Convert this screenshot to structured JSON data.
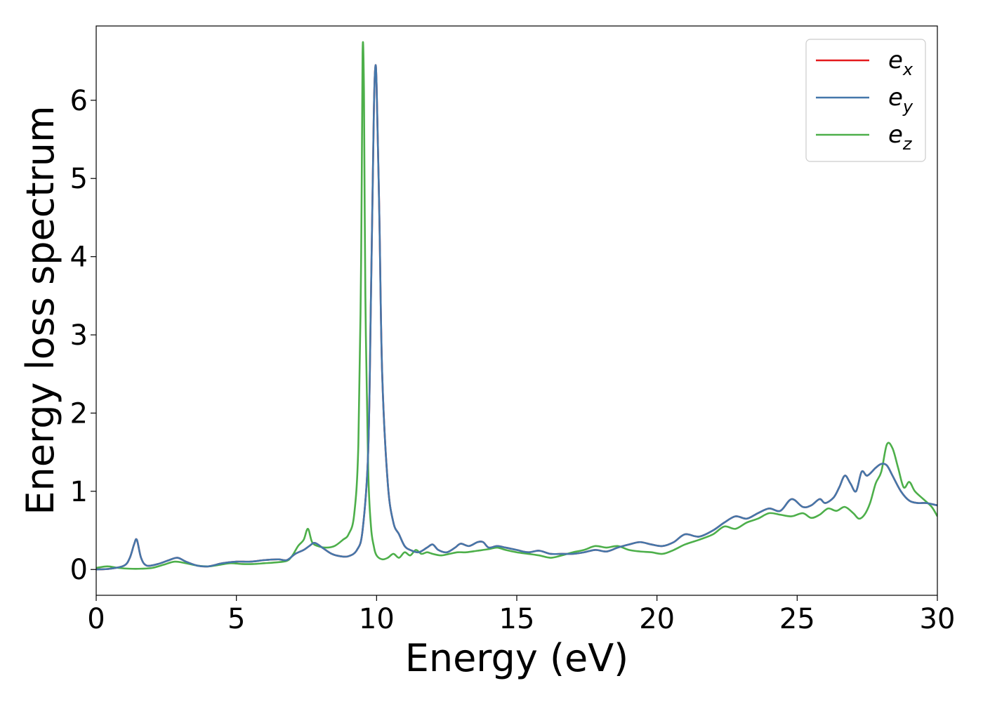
{
  "chart_data": {
    "type": "line",
    "title": "",
    "xlabel": "Energy (eV)",
    "ylabel": "Energy loss spectrum",
    "xlim": [
      0,
      30
    ],
    "ylim": [
      -0.33,
      6.95
    ],
    "xticks": [
      0,
      5,
      10,
      15,
      20,
      25,
      30
    ],
    "yticks": [
      0,
      1,
      2,
      3,
      4,
      5,
      6
    ],
    "grid": false,
    "legend_position": "top-right",
    "series": [
      {
        "name": "e",
        "subscript": "x",
        "color": "#e41a1c",
        "x": [
          0,
          0.5,
          1,
          1.2,
          1.35,
          1.45,
          1.6,
          1.8,
          2.2,
          2.6,
          2.9,
          3.2,
          3.6,
          4,
          4.5,
          5,
          5.5,
          6,
          6.5,
          6.8,
          7.1,
          7.4,
          7.6,
          7.8,
          8.1,
          8.4,
          8.7,
          9,
          9.3,
          9.5,
          9.7,
          9.8,
          9.9,
          9.95,
          10.0,
          10.1,
          10.2,
          10.4,
          10.6,
          10.8,
          11,
          11.2,
          11.5,
          11.8,
          12,
          12.2,
          12.5,
          12.8,
          13,
          13.3,
          13.6,
          13.8,
          14,
          14.3,
          14.6,
          15,
          15.4,
          15.8,
          16.2,
          16.6,
          17,
          17.4,
          17.8,
          18.2,
          18.6,
          19,
          19.4,
          19.8,
          20.2,
          20.6,
          21,
          21.5,
          22,
          22.4,
          22.8,
          23.2,
          23.6,
          24,
          24.4,
          24.8,
          25.2,
          25.5,
          25.8,
          26,
          26.3,
          26.5,
          26.7,
          26.9,
          27.1,
          27.3,
          27.5,
          27.8,
          28,
          28.2,
          28.4,
          28.7,
          29,
          29.3,
          29.6,
          30
        ],
        "y": [
          0,
          0.01,
          0.05,
          0.15,
          0.32,
          0.38,
          0.15,
          0.05,
          0.07,
          0.12,
          0.15,
          0.1,
          0.05,
          0.04,
          0.08,
          0.1,
          0.1,
          0.12,
          0.13,
          0.12,
          0.2,
          0.25,
          0.3,
          0.34,
          0.27,
          0.2,
          0.17,
          0.17,
          0.25,
          0.5,
          1.5,
          3.5,
          5.8,
          6.4,
          6.2,
          4.5,
          2.5,
          1.1,
          0.6,
          0.45,
          0.3,
          0.25,
          0.22,
          0.28,
          0.32,
          0.25,
          0.22,
          0.28,
          0.33,
          0.3,
          0.35,
          0.35,
          0.28,
          0.3,
          0.28,
          0.25,
          0.22,
          0.24,
          0.2,
          0.2,
          0.2,
          0.22,
          0.25,
          0.23,
          0.28,
          0.32,
          0.35,
          0.32,
          0.3,
          0.35,
          0.45,
          0.42,
          0.5,
          0.6,
          0.68,
          0.65,
          0.72,
          0.78,
          0.75,
          0.9,
          0.8,
          0.82,
          0.9,
          0.85,
          0.92,
          1.05,
          1.2,
          1.1,
          1.0,
          1.25,
          1.2,
          1.3,
          1.35,
          1.33,
          1.2,
          1.0,
          0.88,
          0.85,
          0.85,
          0.82
        ]
      },
      {
        "name": "e",
        "subscript": "y",
        "color": "#4477aa",
        "x": [
          0,
          0.5,
          1,
          1.2,
          1.35,
          1.45,
          1.6,
          1.8,
          2.2,
          2.6,
          2.9,
          3.2,
          3.6,
          4,
          4.5,
          5,
          5.5,
          6,
          6.5,
          6.8,
          7.1,
          7.4,
          7.6,
          7.8,
          8.1,
          8.4,
          8.7,
          9,
          9.3,
          9.5,
          9.7,
          9.8,
          9.9,
          9.95,
          10.0,
          10.1,
          10.2,
          10.4,
          10.6,
          10.8,
          11,
          11.2,
          11.5,
          11.8,
          12,
          12.2,
          12.5,
          12.8,
          13,
          13.3,
          13.6,
          13.8,
          14,
          14.3,
          14.6,
          15,
          15.4,
          15.8,
          16.2,
          16.6,
          17,
          17.4,
          17.8,
          18.2,
          18.6,
          19,
          19.4,
          19.8,
          20.2,
          20.6,
          21,
          21.5,
          22,
          22.4,
          22.8,
          23.2,
          23.6,
          24,
          24.4,
          24.8,
          25.2,
          25.5,
          25.8,
          26,
          26.3,
          26.5,
          26.7,
          26.9,
          27.1,
          27.3,
          27.5,
          27.8,
          28,
          28.2,
          28.4,
          28.7,
          29,
          29.3,
          29.6,
          30
        ],
        "y": [
          0,
          0.01,
          0.05,
          0.15,
          0.32,
          0.38,
          0.15,
          0.05,
          0.07,
          0.12,
          0.15,
          0.1,
          0.05,
          0.04,
          0.08,
          0.1,
          0.1,
          0.12,
          0.13,
          0.12,
          0.2,
          0.25,
          0.3,
          0.34,
          0.27,
          0.2,
          0.17,
          0.17,
          0.25,
          0.5,
          1.5,
          3.5,
          5.8,
          6.4,
          6.2,
          4.5,
          2.5,
          1.1,
          0.6,
          0.45,
          0.3,
          0.25,
          0.22,
          0.28,
          0.32,
          0.25,
          0.22,
          0.28,
          0.33,
          0.3,
          0.35,
          0.35,
          0.28,
          0.3,
          0.28,
          0.25,
          0.22,
          0.24,
          0.2,
          0.2,
          0.2,
          0.22,
          0.25,
          0.23,
          0.28,
          0.32,
          0.35,
          0.32,
          0.3,
          0.35,
          0.45,
          0.42,
          0.5,
          0.6,
          0.68,
          0.65,
          0.72,
          0.78,
          0.75,
          0.9,
          0.8,
          0.82,
          0.9,
          0.85,
          0.92,
          1.05,
          1.2,
          1.1,
          1.0,
          1.25,
          1.2,
          1.3,
          1.35,
          1.33,
          1.2,
          1.0,
          0.88,
          0.85,
          0.85,
          0.82
        ]
      },
      {
        "name": "e",
        "subscript": "z",
        "color": "#4daf4a",
        "x": [
          0,
          0.4,
          0.8,
          1.2,
          1.6,
          2,
          2.4,
          2.8,
          3.2,
          3.6,
          4,
          4.4,
          4.8,
          5.2,
          5.6,
          6,
          6.4,
          6.8,
          7.0,
          7.2,
          7.4,
          7.55,
          7.7,
          7.9,
          8.2,
          8.5,
          8.8,
          9.0,
          9.2,
          9.35,
          9.45,
          9.5,
          9.55,
          9.6,
          9.7,
          9.8,
          9.9,
          10,
          10.2,
          10.4,
          10.6,
          10.8,
          11,
          11.2,
          11.4,
          11.6,
          11.8,
          12,
          12.3,
          12.6,
          12.9,
          13.2,
          13.6,
          14,
          14.3,
          14.6,
          15,
          15.4,
          15.8,
          16.2,
          16.6,
          17,
          17.4,
          17.8,
          18.2,
          18.6,
          19,
          19.4,
          19.8,
          20.2,
          20.6,
          21,
          21.5,
          22,
          22.4,
          22.8,
          23.2,
          23.6,
          24,
          24.4,
          24.8,
          25.2,
          25.5,
          25.8,
          26.1,
          26.4,
          26.7,
          27,
          27.2,
          27.4,
          27.6,
          27.8,
          28,
          28.2,
          28.4,
          28.6,
          28.8,
          29,
          29.2,
          29.5,
          29.8,
          30
        ],
        "y": [
          0.02,
          0.04,
          0.02,
          0.01,
          0.01,
          0.02,
          0.06,
          0.1,
          0.08,
          0.05,
          0.04,
          0.06,
          0.08,
          0.07,
          0.07,
          0.08,
          0.09,
          0.11,
          0.18,
          0.3,
          0.38,
          0.52,
          0.35,
          0.3,
          0.28,
          0.3,
          0.38,
          0.45,
          0.7,
          1.6,
          4.0,
          6.6,
          6.1,
          3.5,
          1.3,
          0.55,
          0.3,
          0.18,
          0.13,
          0.15,
          0.2,
          0.15,
          0.22,
          0.18,
          0.25,
          0.2,
          0.22,
          0.2,
          0.18,
          0.2,
          0.22,
          0.22,
          0.24,
          0.26,
          0.28,
          0.25,
          0.22,
          0.2,
          0.18,
          0.15,
          0.18,
          0.22,
          0.25,
          0.3,
          0.28,
          0.3,
          0.25,
          0.23,
          0.22,
          0.2,
          0.25,
          0.32,
          0.38,
          0.45,
          0.55,
          0.52,
          0.6,
          0.65,
          0.72,
          0.7,
          0.68,
          0.72,
          0.66,
          0.7,
          0.78,
          0.75,
          0.8,
          0.72,
          0.65,
          0.7,
          0.85,
          1.1,
          1.25,
          1.6,
          1.55,
          1.3,
          1.05,
          1.12,
          1.0,
          0.9,
          0.8,
          0.68
        ]
      }
    ]
  }
}
